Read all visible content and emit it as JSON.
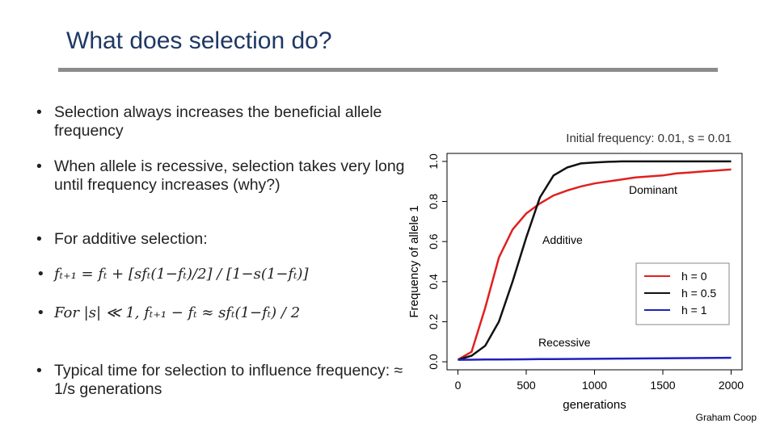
{
  "title": "What does selection do?",
  "bullets": [
    "Selection always increases the beneficial allele frequency",
    "When allele is recessive, selection takes very long until frequency increases (why?)",
    "For additive selection:",
    "fₜ₊₁ = fₜ + [sfₜ(1−fₜ)/2] / [1−s(1−fₜ)]",
    "For |s| ≪ 1,  fₜ₊₁ − fₜ ≈ sfₜ(1−fₜ) / 2",
    "Typical time for selection to influence frequency: ≈ 1/s generations"
  ],
  "credit": "Graham Coop",
  "chart_data": {
    "type": "line",
    "subtitle": "Initial frequency: 0.01, s = 0.01",
    "x_label": "generations",
    "y_label": "Frequency of allele 1",
    "x": [
      0,
      100,
      200,
      300,
      400,
      500,
      600,
      700,
      800,
      900,
      1000,
      1100,
      1200,
      1300,
      1400,
      1500,
      1600,
      1700,
      1800,
      1900,
      2000
    ],
    "series": [
      {
        "name": "h = 0",
        "color": "#e02020",
        "values": [
          0.01,
          0.05,
          0.27,
          0.52,
          0.66,
          0.74,
          0.79,
          0.83,
          0.855,
          0.875,
          0.89,
          0.9,
          0.91,
          0.92,
          0.925,
          0.93,
          0.94,
          0.945,
          0.95,
          0.955,
          0.96
        ]
      },
      {
        "name": "h = 0.5",
        "color": "#111111",
        "values": [
          0.01,
          0.03,
          0.08,
          0.2,
          0.4,
          0.62,
          0.82,
          0.93,
          0.97,
          0.99,
          0.995,
          0.998,
          1,
          1,
          1,
          1,
          1,
          1,
          1,
          1,
          1
        ]
      },
      {
        "name": "h = 1",
        "color": "#2020c0",
        "values": [
          0.01,
          0.0105,
          0.011,
          0.0115,
          0.012,
          0.0125,
          0.013,
          0.0135,
          0.014,
          0.0145,
          0.015,
          0.0155,
          0.016,
          0.0165,
          0.017,
          0.0175,
          0.018,
          0.0185,
          0.019,
          0.0195,
          0.02
        ]
      }
    ],
    "xlim": [
      -80,
      2080
    ],
    "ylim": [
      -0.04,
      1.04
    ],
    "xticks": [
      0,
      500,
      1000,
      1500,
      2000
    ],
    "yticks": [
      {
        "value": 0,
        "label": "0.0"
      },
      0.2,
      0.4,
      0.6,
      0.8,
      {
        "value": 1,
        "label": "1.0"
      }
    ],
    "annotations": [
      "Dominant",
      "Additive",
      "Recessive"
    ],
    "legend": "right"
  }
}
